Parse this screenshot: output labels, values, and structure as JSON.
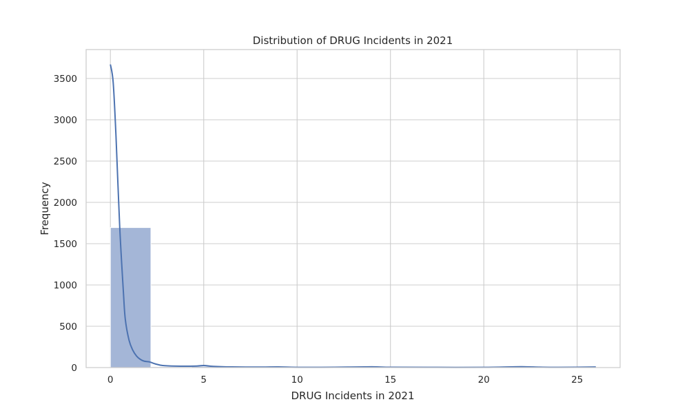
{
  "chart_data": {
    "type": "bar",
    "subtype": "histogram-with-kde",
    "title": "Distribution of DRUG Incidents in 2021",
    "xlabel": "DRUG Incidents in 2021",
    "ylabel": "Frequency",
    "xlim": [
      -1.3,
      27.3
    ],
    "ylim": [
      0,
      3850
    ],
    "xticks": [
      0,
      5,
      10,
      15,
      20,
      25
    ],
    "yticks": [
      0,
      500,
      1000,
      1500,
      2000,
      2500,
      3000,
      3500
    ],
    "grid": true,
    "colors": {
      "bar": "#a4b6d7",
      "bar_edge": "#ffffff",
      "kde": "#4c72b0",
      "grid": "#cccccc",
      "frame": "#cccccc"
    },
    "histogram": {
      "bins": [
        {
          "x0": 0.0,
          "x1": 2.17,
          "count": 1695
        },
        {
          "x0": 2.17,
          "x1": 4.33,
          "count": 10
        },
        {
          "x0": 4.33,
          "x1": 6.5,
          "count": 15
        },
        {
          "x0": 6.5,
          "x1": 8.67,
          "count": 4
        },
        {
          "x0": 8.67,
          "x1": 10.83,
          "count": 3
        },
        {
          "x0": 10.83,
          "x1": 13.0,
          "count": 2
        },
        {
          "x0": 13.0,
          "x1": 15.17,
          "count": 5
        },
        {
          "x0": 15.17,
          "x1": 17.33,
          "count": 2
        },
        {
          "x0": 17.33,
          "x1": 19.5,
          "count": 1
        },
        {
          "x0": 19.5,
          "x1": 21.67,
          "count": 1
        },
        {
          "x0": 21.67,
          "x1": 23.83,
          "count": 6
        },
        {
          "x0": 23.83,
          "x1": 26.0,
          "count": 2
        }
      ]
    },
    "kde": {
      "x": [
        0,
        0.15,
        0.3,
        0.5,
        0.7,
        0.8,
        1.0,
        1.2,
        1.4,
        1.6,
        1.8,
        2.1,
        2.4,
        2.8,
        3.5,
        4.5,
        5.0,
        5.5,
        6.5,
        8.0,
        9.0,
        10.0,
        12.0,
        14.0,
        15.0,
        17.0,
        20.0,
        22.0,
        23.0,
        24.0,
        26.0
      ],
      "y": [
        3670,
        3450,
        2800,
        1700,
        900,
        580,
        330,
        210,
        140,
        100,
        78,
        68,
        45,
        25,
        18,
        18,
        25,
        15,
        8,
        6,
        8,
        3,
        4,
        9,
        4,
        3,
        3,
        10,
        5,
        3,
        7
      ]
    }
  }
}
